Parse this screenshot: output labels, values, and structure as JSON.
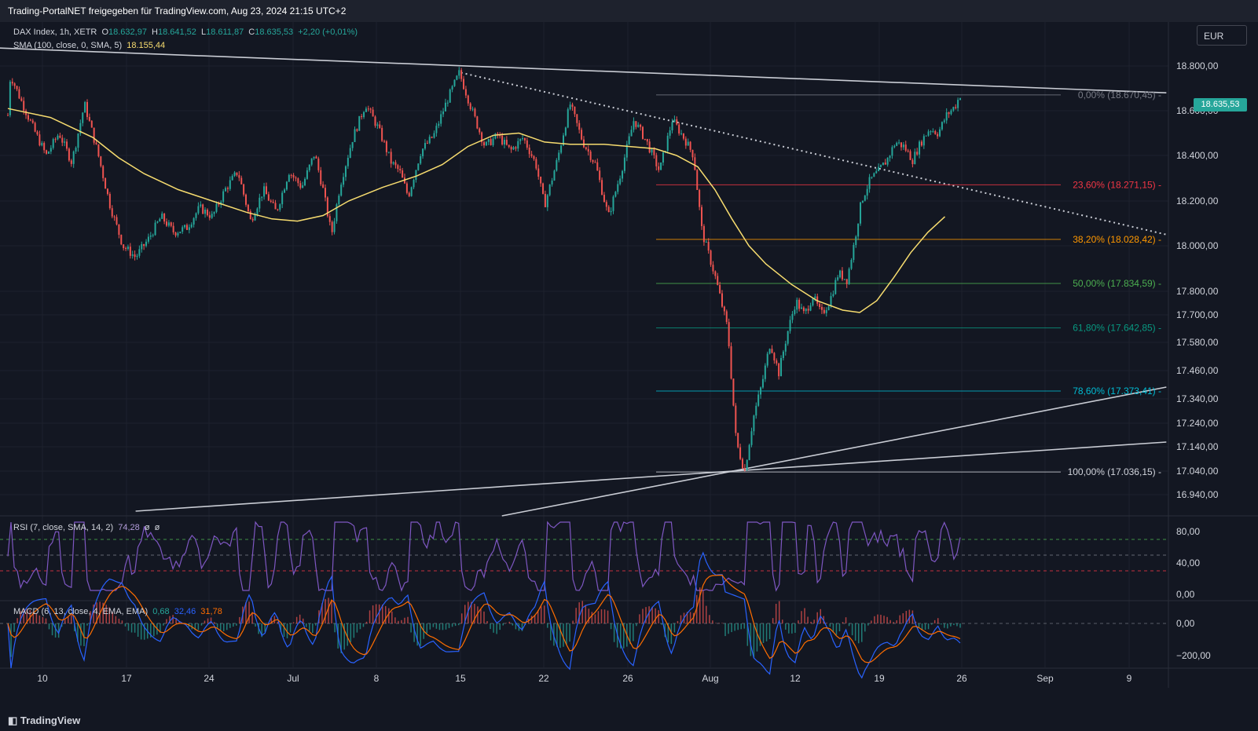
{
  "header": {
    "title": "Trading-PortalNET freigegeben für TradingView.com, Aug 23, 2024 21:15 UTC+2"
  },
  "currency_button": "EUR",
  "last_price_label": "18.635,53",
  "footer": {
    "brand": "TradingView"
  },
  "legend": {
    "symbol": "DAX Index, 1h, XETR",
    "o_label": "O",
    "o_value": "18.632,97",
    "h_label": "H",
    "h_value": "18.641,52",
    "l_label": "L",
    "l_value": "18.611,87",
    "c_label": "C",
    "c_value": "18.635,53",
    "change": "+2,20 (+0,01%)",
    "sma_label": "SMA (100, close, 0, SMA, 5)",
    "sma_value": "18.155,44",
    "rsi_label": "RSI (7, close, SMA, 14, 2)",
    "rsi_value": "74,28",
    "rsi_extra1": "ø",
    "rsi_extra2": "ø",
    "macd_label": "MACD (6, 13, close, 4, EMA, EMA)",
    "macd_hist": "0,68",
    "macd_line": "32,46",
    "macd_signal": "31,78"
  },
  "colors": {
    "background": "#131722",
    "up": "#26a69a",
    "down": "#ef5350",
    "sma": "#f7dc6f",
    "rsi": "#7e57c2",
    "macd": "#2962ff",
    "signal": "#ff6d00",
    "trendline": "#c9ccd4"
  },
  "chart_data": {
    "type": "candlestick",
    "price_axis_labels": [
      "18.800,00",
      "18.600,00",
      "18.400,00",
      "18.200,00",
      "18.000,00",
      "17.800,00",
      "17.700,00",
      "17.580,00",
      "17.460,00",
      "17.340,00",
      "17.240,00",
      "17.140,00",
      "17.040,00",
      "16.940,00"
    ],
    "price_axis_values": [
      18800,
      18600,
      18400,
      18200,
      18000,
      17800,
      17700,
      17580,
      17460,
      17340,
      17240,
      17140,
      17040,
      16940
    ],
    "rsi_axis_labels": [
      "80,00",
      "40,00",
      "0,00"
    ],
    "rsi_axis_values": [
      80,
      40,
      0
    ],
    "macd_axis_labels": [
      "0,00",
      "−200,00"
    ],
    "macd_axis_values": [
      0,
      -200
    ],
    "time_axis_labels": [
      "10",
      "17",
      "24",
      "Jul",
      "8",
      "15",
      "22",
      "26",
      "Aug",
      "12",
      "19",
      "26",
      "Sep",
      "9"
    ],
    "fibonacci": [
      {
        "label": "0,00% (18.670,45)",
        "value": 18670.45,
        "color": "#787b86"
      },
      {
        "label": "23,60% (18.271,15)",
        "value": 18271.15,
        "color": "#f23645"
      },
      {
        "label": "38,20% (18.028,42)",
        "value": 18028.42,
        "color": "#ff9800"
      },
      {
        "label": "50,00% (17.834,59)",
        "value": 17834.59,
        "color": "#4caf50"
      },
      {
        "label": "61,80% (17.642,85)",
        "value": 17642.85,
        "color": "#089981"
      },
      {
        "label": "78,60% (17.373,41)",
        "value": 17373.41,
        "color": "#00bcd4"
      },
      {
        "label": "100,00% (17.036,15)",
        "value": 17036.15,
        "color": "#d1d4dc"
      }
    ],
    "price_path": [
      [
        0,
        18580
      ],
      [
        0.3,
        18760
      ],
      [
        1.5,
        18650
      ],
      [
        3,
        18520
      ],
      [
        4.5,
        18400
      ],
      [
        6,
        18500
      ],
      [
        7.5,
        18370
      ],
      [
        9,
        18630
      ],
      [
        10.5,
        18420
      ],
      [
        12,
        18180
      ],
      [
        13.5,
        18000
      ],
      [
        15,
        17950
      ],
      [
        16.5,
        18030
      ],
      [
        18,
        18130
      ],
      [
        19.5,
        18060
      ],
      [
        21,
        18080
      ],
      [
        22.5,
        18170
      ],
      [
        24,
        18130
      ],
      [
        25.5,
        18250
      ],
      [
        27,
        18330
      ],
      [
        28.5,
        18110
      ],
      [
        30,
        18250
      ],
      [
        31.5,
        18150
      ],
      [
        33,
        18330
      ],
      [
        34.5,
        18260
      ],
      [
        36,
        18410
      ],
      [
        37,
        18250
      ],
      [
        38,
        18050
      ],
      [
        39,
        18270
      ],
      [
        40.5,
        18480
      ],
      [
        42,
        18630
      ],
      [
        43.5,
        18520
      ],
      [
        45,
        18370
      ],
      [
        46,
        18330
      ],
      [
        47,
        18220
      ],
      [
        48.5,
        18420
      ],
      [
        50,
        18490
      ],
      [
        51.5,
        18640
      ],
      [
        53,
        18770
      ],
      [
        54.5,
        18600
      ],
      [
        56,
        18440
      ],
      [
        57.5,
        18490
      ],
      [
        59,
        18420
      ],
      [
        60.5,
        18480
      ],
      [
        62,
        18360
      ],
      [
        63,
        18180
      ],
      [
        64.5,
        18380
      ],
      [
        66,
        18630
      ],
      [
        67.5,
        18460
      ],
      [
        69,
        18360
      ],
      [
        70.5,
        18130
      ],
      [
        72,
        18330
      ],
      [
        73.5,
        18560
      ],
      [
        75,
        18460
      ],
      [
        76.5,
        18330
      ],
      [
        78,
        18560
      ],
      [
        79.5,
        18470
      ],
      [
        80.5,
        18400
      ],
      [
        81.5,
        18060
      ],
      [
        83,
        17870
      ],
      [
        84.5,
        17640
      ],
      [
        85.5,
        17160
      ],
      [
        86.5,
        17040
      ],
      [
        87.5,
        17260
      ],
      [
        88.5,
        17400
      ],
      [
        89.5,
        17580
      ],
      [
        90.5,
        17450
      ],
      [
        91.5,
        17620
      ],
      [
        92.5,
        17760
      ],
      [
        93.5,
        17700
      ],
      [
        94.5,
        17780
      ],
      [
        95.5,
        17700
      ],
      [
        96.5,
        17760
      ],
      [
        97.5,
        17880
      ],
      [
        98.5,
        17850
      ],
      [
        99.3,
        18000
      ],
      [
        100.2,
        18200
      ],
      [
        101.2,
        18290
      ],
      [
        102.2,
        18330
      ],
      [
        103.2,
        18380
      ],
      [
        104.2,
        18460
      ],
      [
        105.2,
        18440
      ],
      [
        106.2,
        18380
      ],
      [
        107.2,
        18460
      ],
      [
        108.2,
        18520
      ],
      [
        109.2,
        18500
      ],
      [
        110.2,
        18580
      ],
      [
        111.2,
        18620
      ],
      [
        111.8,
        18670
      ]
    ],
    "sma_path": [
      [
        0,
        18610
      ],
      [
        5,
        18570
      ],
      [
        10,
        18480
      ],
      [
        13,
        18390
      ],
      [
        16,
        18320
      ],
      [
        20,
        18250
      ],
      [
        24,
        18200
      ],
      [
        28,
        18150
      ],
      [
        31,
        18120
      ],
      [
        34,
        18110
      ],
      [
        37,
        18135
      ],
      [
        40,
        18200
      ],
      [
        44,
        18260
      ],
      [
        48,
        18310
      ],
      [
        51,
        18360
      ],
      [
        54,
        18440
      ],
      [
        57,
        18490
      ],
      [
        60,
        18500
      ],
      [
        63,
        18460
      ],
      [
        66,
        18450
      ],
      [
        70,
        18450
      ],
      [
        73,
        18440
      ],
      [
        76,
        18430
      ],
      [
        78.5,
        18400
      ],
      [
        81,
        18350
      ],
      [
        83,
        18250
      ],
      [
        85,
        18120
      ],
      [
        87,
        18000
      ],
      [
        89,
        17920
      ],
      [
        92,
        17830
      ],
      [
        95,
        17760
      ],
      [
        98,
        17720
      ],
      [
        100,
        17710
      ],
      [
        102,
        17760
      ],
      [
        104,
        17860
      ],
      [
        106,
        17970
      ],
      [
        108,
        18060
      ],
      [
        110,
        18130
      ]
    ],
    "trendlines": [
      {
        "from": [
          -1,
          18880
        ],
        "to": [
          136,
          18680
        ],
        "style": "solid"
      },
      {
        "from": [
          53.2,
          18770
        ],
        "to": [
          136,
          18050
        ],
        "style": "dotted"
      },
      {
        "from": [
          15,
          16870
        ],
        "to": [
          136,
          17160
        ],
        "style": "solid"
      },
      {
        "from": [
          58,
          16850
        ],
        "to": [
          136,
          17390
        ],
        "style": "solid"
      }
    ],
    "rsi_levels": [
      70,
      50,
      30
    ],
    "macd_zero": 0
  }
}
